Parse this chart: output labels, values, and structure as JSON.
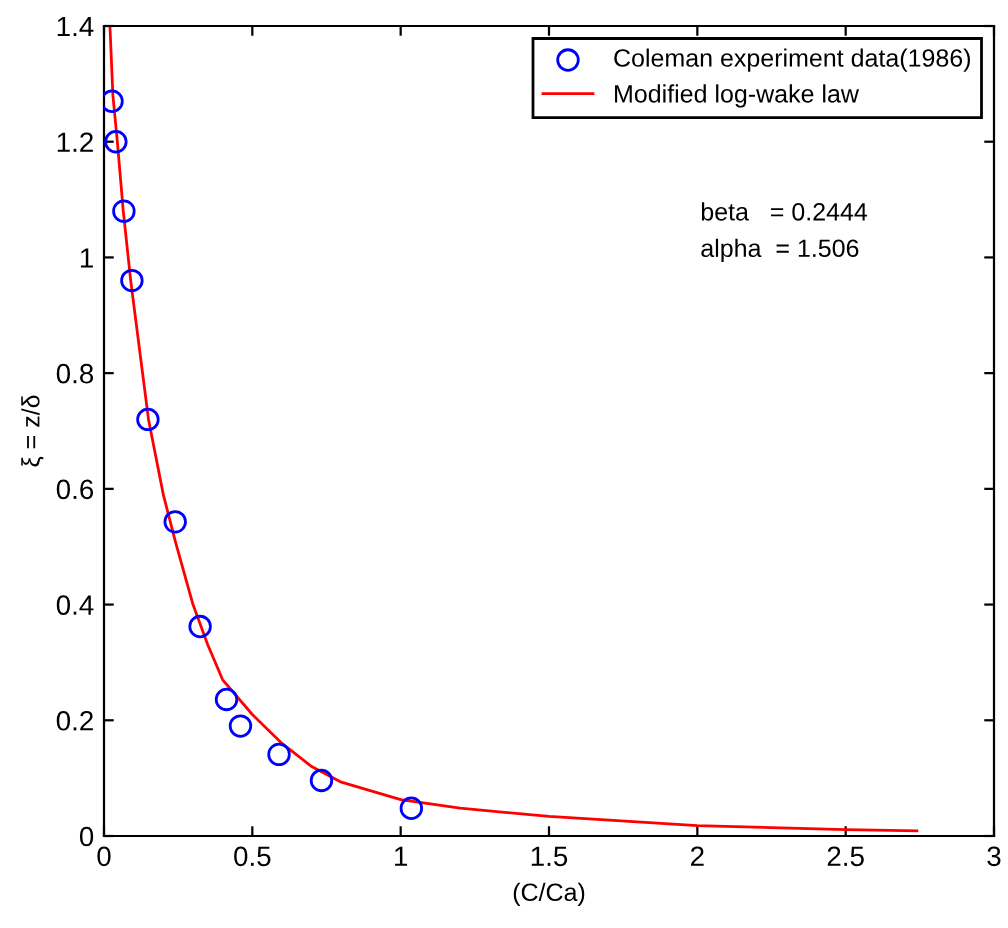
{
  "chart_data": {
    "type": "line",
    "xlabel": "(C/Ca)",
    "ylabel": "ξ = z/δ",
    "xlim": [
      0,
      3
    ],
    "xticks": [
      0,
      0.5,
      1,
      1.5,
      2,
      2.5,
      3
    ],
    "ylim": [
      0,
      1.4
    ],
    "yticks": [
      0,
      0.2,
      0.4,
      0.6,
      0.8,
      1,
      1.2,
      1.4
    ],
    "grid": false,
    "legend": "top right",
    "annotations": [
      "beta   = 0.2444",
      "alpha  = 1.506"
    ],
    "series": [
      {
        "name": "Coleman experiment data(1986)",
        "type": "scatter",
        "marker": "circle",
        "color": "#0000ff",
        "x": [
          0.027,
          0.04,
          0.067,
          0.094,
          0.148,
          0.24,
          0.324,
          0.413,
          0.46,
          0.59,
          0.733,
          1.036
        ],
        "values": [
          1.27,
          1.2,
          1.08,
          0.96,
          0.72,
          0.543,
          0.362,
          0.236,
          0.19,
          0.141,
          0.096,
          0.048
        ]
      },
      {
        "name": "Modified log-wake law",
        "line_style": "solid",
        "color": "#ff0000",
        "x": [
          0.02,
          0.03,
          0.045,
          0.065,
          0.09,
          0.15,
          0.2,
          0.24,
          0.3,
          0.35,
          0.4,
          0.5,
          0.6,
          0.7,
          0.8,
          1.0,
          1.2,
          1.5,
          2.0,
          2.5,
          2.74
        ],
        "values": [
          1.4,
          1.28,
          1.2,
          1.08,
          0.96,
          0.72,
          0.59,
          0.51,
          0.4,
          0.33,
          0.27,
          0.21,
          0.16,
          0.12,
          0.093,
          0.063,
          0.048,
          0.034,
          0.018,
          0.011,
          0.009
        ]
      }
    ]
  }
}
